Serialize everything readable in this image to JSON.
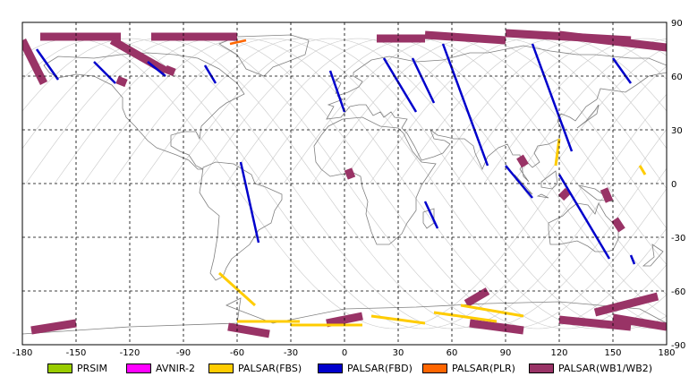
{
  "map": {
    "lon_range": [
      -180,
      180
    ],
    "lat_range": [
      -90,
      90
    ],
    "x_ticks": [
      -180,
      -150,
      -120,
      -90,
      -60,
      -30,
      0,
      30,
      60,
      90,
      120,
      150,
      180
    ],
    "y_ticks": [
      90,
      60,
      30,
      0,
      -30,
      -60,
      -90
    ],
    "x_tick_labels": [
      "-180",
      "-150",
      "-120",
      "-90",
      "-60",
      "-30",
      "0",
      "30",
      "60",
      "90",
      "120",
      "150",
      "180"
    ],
    "y_tick_labels": [
      "90",
      "60",
      "30",
      "0",
      "-30",
      "-60",
      "-90"
    ],
    "grid": "dashed",
    "colors": {
      "PRSIM": "#99cc00",
      "AVNIR-2": "#ff00ff",
      "PALSAR(FBS)": "#ffcc00",
      "PALSAR(FBD)": "#0000cc",
      "PALSAR(PLR)": "#ff6600",
      "PALSAR(WB1/WB2)": "#993366",
      "orbit": "#c8c8c8",
      "coastline": "#808080"
    }
  },
  "legend": {
    "items": [
      {
        "label": "PRSIM",
        "color": "#99cc00"
      },
      {
        "label": "AVNIR-2",
        "color": "#ff00ff"
      },
      {
        "label": "PALSAR(FBS)",
        "color": "#ffcc00"
      },
      {
        "label": "PALSAR(FBD)",
        "color": "#0000cc"
      },
      {
        "label": "PALSAR(PLR)",
        "color": "#ff6600"
      },
      {
        "label": "PALSAR(WB1/WB2)",
        "color": "#993366"
      }
    ]
  },
  "swaths": {
    "wb": [
      {
        "lon1": -180,
        "lat1": 80,
        "lon2": -168,
        "lat2": 56
      },
      {
        "lon1": -170,
        "lat1": 82,
        "lon2": -125,
        "lat2": 82
      },
      {
        "lon1": -130,
        "lat1": 80,
        "lon2": -100,
        "lat2": 63
      },
      {
        "lon1": -108,
        "lat1": 82,
        "lon2": -60,
        "lat2": 82
      },
      {
        "lon1": -100,
        "lat1": 64,
        "lon2": -95,
        "lat2": 62
      },
      {
        "lon1": -127,
        "lat1": 58,
        "lon2": -122,
        "lat2": 56
      },
      {
        "lon1": 18,
        "lat1": 81,
        "lon2": 45,
        "lat2": 81
      },
      {
        "lon1": 45,
        "lat1": 83,
        "lon2": 90,
        "lat2": 80
      },
      {
        "lon1": 90,
        "lat1": 84,
        "lon2": 160,
        "lat2": 80
      },
      {
        "lon1": 120,
        "lat1": 83,
        "lon2": 180,
        "lat2": 76
      },
      {
        "lon1": 2,
        "lat1": 8,
        "lon2": 4,
        "lat2": 3
      },
      {
        "lon1": 98,
        "lat1": 15,
        "lon2": 101,
        "lat2": 10
      },
      {
        "lon1": 121,
        "lat1": -8,
        "lon2": 125,
        "lat2": -4
      },
      {
        "lon1": 145,
        "lat1": -3,
        "lon2": 148,
        "lat2": -10
      },
      {
        "lon1": 151,
        "lat1": -20,
        "lon2": 155,
        "lat2": -26
      },
      {
        "lon1": -175,
        "lat1": -82,
        "lon2": -150,
        "lat2": -78
      },
      {
        "lon1": -65,
        "lat1": -80,
        "lon2": -42,
        "lat2": -84
      },
      {
        "lon1": -10,
        "lat1": -78,
        "lon2": 10,
        "lat2": -74
      },
      {
        "lon1": 70,
        "lat1": -78,
        "lon2": 100,
        "lat2": -82
      },
      {
        "lon1": 120,
        "lat1": -76,
        "lon2": 160,
        "lat2": -80
      },
      {
        "lon1": 140,
        "lat1": -72,
        "lon2": 175,
        "lat2": -63
      },
      {
        "lon1": 150,
        "lat1": -75,
        "lon2": 180,
        "lat2": -80
      },
      {
        "lon1": 68,
        "lat1": -67,
        "lon2": 80,
        "lat2": -60
      }
    ],
    "fbd": [
      {
        "lon1": -172,
        "lat1": 75,
        "lon2": -160,
        "lat2": 58
      },
      {
        "lon1": -140,
        "lat1": 68,
        "lon2": -128,
        "lat2": 56
      },
      {
        "lon1": -110,
        "lat1": 68,
        "lon2": -100,
        "lat2": 60
      },
      {
        "lon1": -78,
        "lat1": 66,
        "lon2": -72,
        "lat2": 56
      },
      {
        "lon1": -58,
        "lat1": 12,
        "lon2": -48,
        "lat2": -33
      },
      {
        "lon1": -8,
        "lat1": 63,
        "lon2": 0,
        "lat2": 40
      },
      {
        "lon1": 22,
        "lat1": 70,
        "lon2": 40,
        "lat2": 40
      },
      {
        "lon1": 38,
        "lat1": 70,
        "lon2": 50,
        "lat2": 45
      },
      {
        "lon1": 55,
        "lat1": 78,
        "lon2": 80,
        "lat2": 10
      },
      {
        "lon1": 105,
        "lat1": 78,
        "lon2": 127,
        "lat2": 18
      },
      {
        "lon1": 120,
        "lat1": 5,
        "lon2": 148,
        "lat2": -42
      },
      {
        "lon1": 150,
        "lat1": 70,
        "lon2": 160,
        "lat2": 56
      },
      {
        "lon1": 90,
        "lat1": 10,
        "lon2": 105,
        "lat2": -8
      },
      {
        "lon1": 45,
        "lat1": -10,
        "lon2": 52,
        "lat2": -25
      },
      {
        "lon1": 160,
        "lat1": -40,
        "lon2": 162,
        "lat2": -45
      }
    ],
    "fbs": [
      {
        "lon1": -70,
        "lat1": -50,
        "lon2": -50,
        "lat2": -68
      },
      {
        "lon1": -60,
        "lat1": -77,
        "lon2": -25,
        "lat2": -77
      },
      {
        "lon1": -30,
        "lat1": -79,
        "lon2": 10,
        "lat2": -79
      },
      {
        "lon1": 15,
        "lat1": -74,
        "lon2": 45,
        "lat2": -78
      },
      {
        "lon1": 50,
        "lat1": -72,
        "lon2": 85,
        "lat2": -77
      },
      {
        "lon1": 65,
        "lat1": -68,
        "lon2": 100,
        "lat2": -74
      },
      {
        "lon1": 120,
        "lat1": 25,
        "lon2": 118,
        "lat2": 10
      },
      {
        "lon1": 165,
        "lat1": 10,
        "lon2": 168,
        "lat2": 5
      }
    ],
    "plr": [
      {
        "lon1": -64,
        "lat1": 78,
        "lon2": -55,
        "lat2": 80
      }
    ]
  }
}
